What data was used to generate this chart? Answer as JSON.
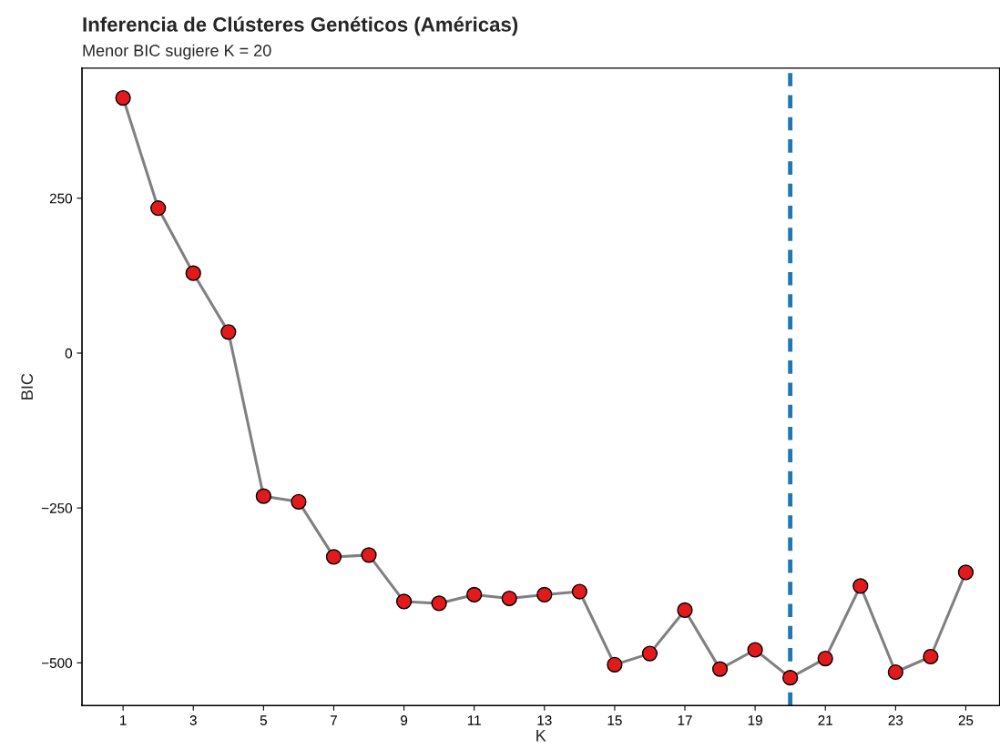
{
  "chart_data": {
    "type": "line",
    "title": "Inferencia de Clústeres Genéticos (Américas)",
    "subtitle": "Menor BIC sugiere K = 20",
    "xlabel": "K",
    "ylabel": "BIC",
    "x": [
      1,
      2,
      3,
      4,
      5,
      6,
      7,
      8,
      9,
      10,
      11,
      12,
      13,
      14,
      15,
      16,
      17,
      18,
      19,
      20,
      21,
      22,
      23,
      24,
      25
    ],
    "series": [
      {
        "color": "#808080",
        "colors": [
          "#e31a1c",
          "#e31a1c",
          "#e31a1c",
          "#e31a1c",
          "#e31a1c",
          "#e31a1c",
          "#e31a1c",
          "#e31a1c",
          "#e31a1c",
          "#e31a1c",
          "#e31a1c",
          "#e31a1c",
          "#e31a1c",
          "#e31a1c",
          "#e31a1c",
          "#e31a1c",
          "#e31a1c",
          "#e31a1c",
          "#e31a1c",
          "#e31a1c",
          "#e31a1c",
          "#e31a1c",
          "#e31a1c",
          "#e31a1c",
          "#e31a1c"
        ],
        "values": [
          412,
          234,
          129,
          34,
          -231,
          -240,
          -329,
          -326,
          -401,
          -404,
          -390,
          -396,
          -390,
          -385,
          -503,
          -485,
          -415,
          -510,
          -479,
          -524,
          -493,
          -376,
          -515,
          -490,
          -354
        ]
      }
    ],
    "marker": "circle",
    "line_style": "solid",
    "xlim": [
      -0.17,
      25.96
    ],
    "ylim": [
      -569,
      460
    ],
    "xticks": [
      1,
      3,
      5,
      7,
      9,
      11,
      13,
      15,
      17,
      19,
      21,
      23,
      25
    ],
    "yticks": [
      {
        "value": -500,
        "label": "−500"
      },
      {
        "value": -250,
        "label": "−250"
      },
      0,
      250
    ],
    "ref_lines": [
      {
        "axis": "x",
        "value": 20,
        "color": "#1f78b4",
        "line_style": "dashed"
      }
    ],
    "grid": false,
    "legend": false
  }
}
